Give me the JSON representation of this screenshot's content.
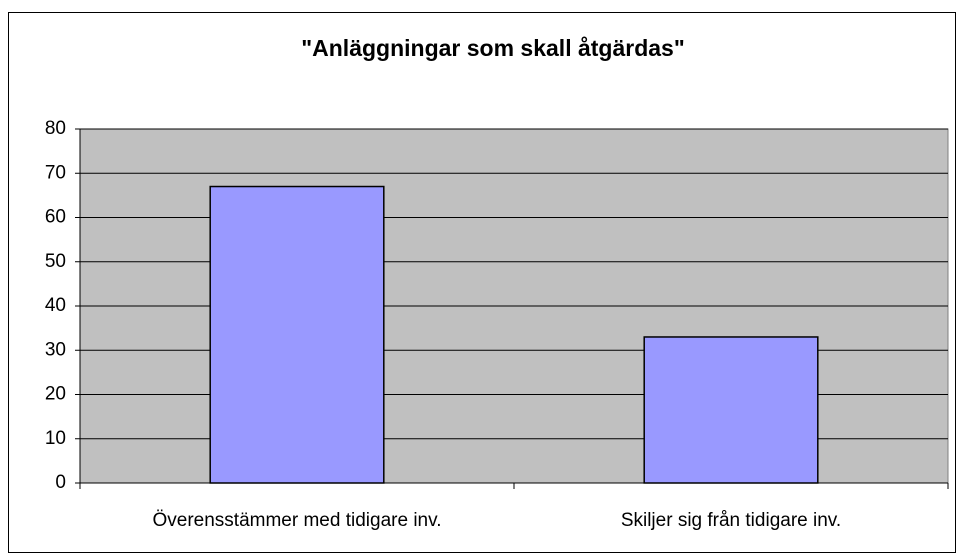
{
  "chart_data": {
    "type": "bar",
    "title": "\"Anläggningar som skall åtgärdas\"",
    "categories": [
      "Överensstämmer med tidigare inv.",
      "Skiljer sig från tidigare inv."
    ],
    "values": [
      67,
      33
    ],
    "color": "#9999ff",
    "ylim": [
      0,
      80
    ],
    "yticks": [
      0,
      10,
      20,
      30,
      40,
      50,
      60,
      70,
      80
    ],
    "grid": true
  }
}
